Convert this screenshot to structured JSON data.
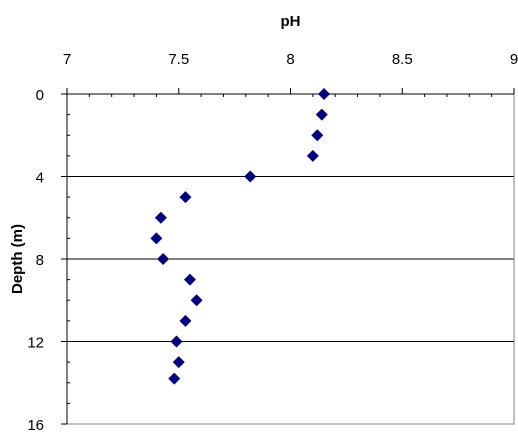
{
  "chart_data": {
    "type": "scatter",
    "title": "",
    "xlabel": "pH",
    "ylabel": "Depth (m)",
    "x_axis_position": "top",
    "y_axis_inverted": true,
    "xlim": [
      7,
      9
    ],
    "ylim": [
      0,
      16
    ],
    "x_ticks": [
      "7",
      "7.5",
      "8",
      "8.5",
      "9"
    ],
    "y_ticks": [
      "0",
      "4",
      "8",
      "12",
      "16"
    ],
    "grid": "horizontal",
    "marker": "diamond",
    "marker_color": "#000080",
    "series": [
      {
        "x": [
          8.15,
          8.14,
          8.12,
          8.1,
          7.82,
          7.53,
          7.42,
          7.4,
          7.43,
          7.55,
          7.58,
          7.53,
          7.49,
          7.5,
          7.48
        ],
        "y": [
          0,
          1,
          2,
          3,
          4,
          5,
          6,
          7,
          8,
          9,
          10,
          11,
          12,
          13,
          13.8
        ]
      }
    ]
  }
}
